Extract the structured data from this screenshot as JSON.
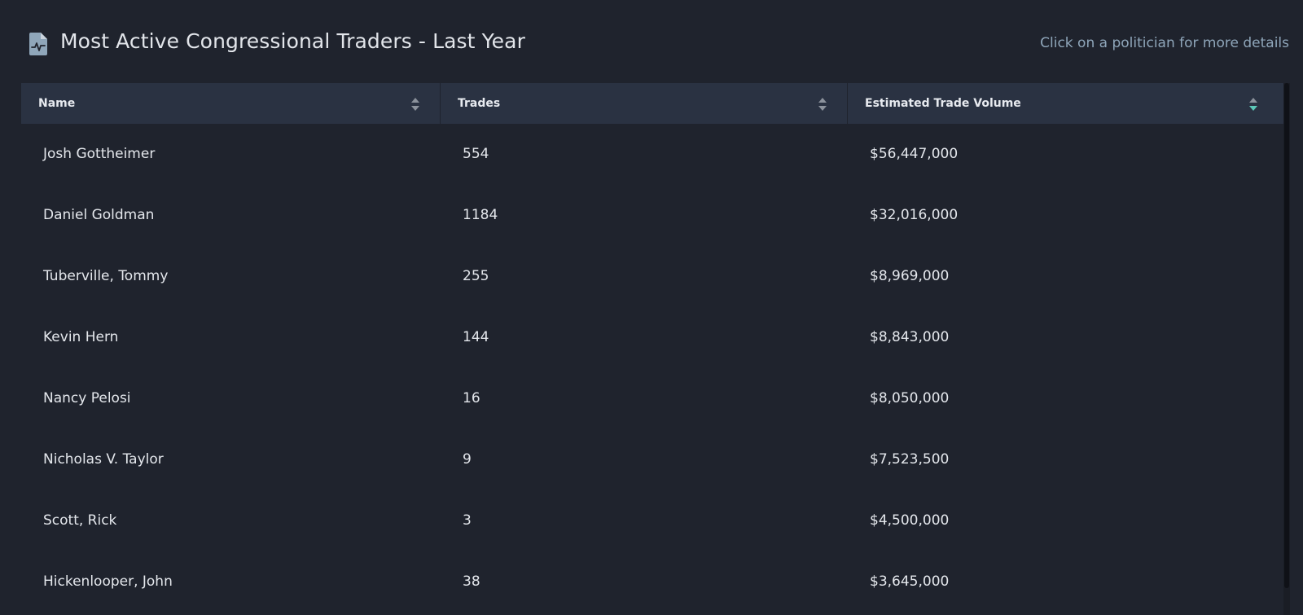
{
  "header": {
    "title": "Most Active Congressional Traders - Last Year",
    "hint": "Click on a politician for more details",
    "icon": "document-chart-icon"
  },
  "table": {
    "columns": [
      {
        "label": "Name",
        "sort": "none"
      },
      {
        "label": "Trades",
        "sort": "none"
      },
      {
        "label": "Estimated Trade Volume",
        "sort": "descending"
      }
    ],
    "rows": [
      {
        "name": "Josh Gottheimer",
        "trades": "554",
        "volume": "$56,447,000"
      },
      {
        "name": "Daniel Goldman",
        "trades": "1184",
        "volume": "$32,016,000"
      },
      {
        "name": "Tuberville, Tommy",
        "trades": "255",
        "volume": "$8,969,000"
      },
      {
        "name": "Kevin Hern",
        "trades": "144",
        "volume": "$8,843,000"
      },
      {
        "name": "Nancy Pelosi",
        "trades": "16",
        "volume": "$8,050,000"
      },
      {
        "name": "Nicholas V. Taylor",
        "trades": "9",
        "volume": "$7,523,500"
      },
      {
        "name": "Scott, Rick",
        "trades": "3",
        "volume": "$4,500,000"
      },
      {
        "name": "Hickenlooper, John",
        "trades": "38",
        "volume": "$3,645,000"
      }
    ]
  },
  "colors": {
    "background": "#1f232d",
    "header_row": "#2a3242",
    "hint_text": "#8fa6ba",
    "sort_active": "#5cc8b8",
    "sort_inactive": "#8c929c"
  }
}
